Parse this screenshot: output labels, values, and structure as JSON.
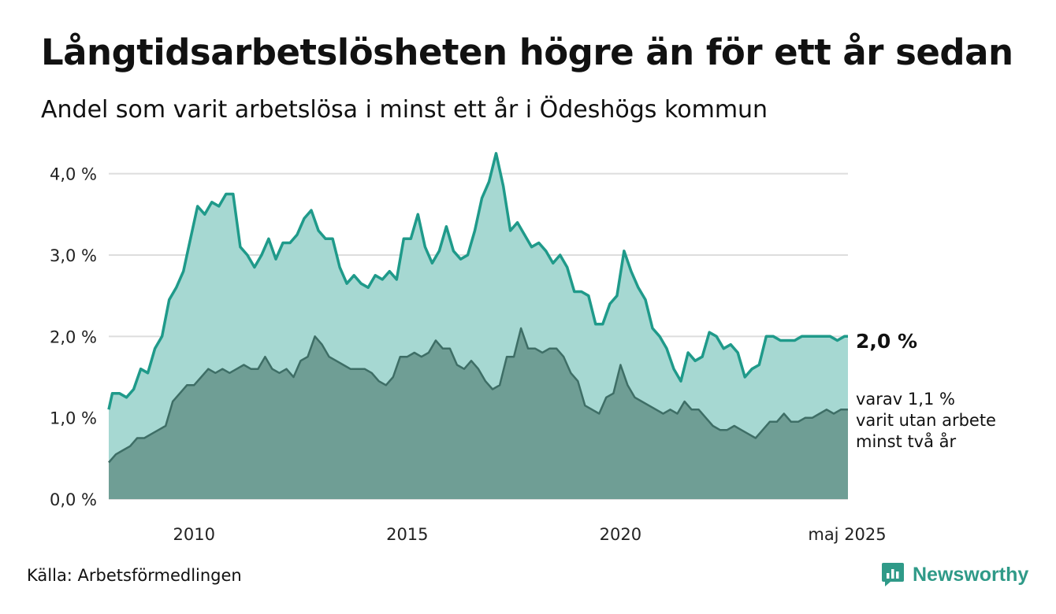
{
  "title": "Långtidsarbetslösheten högre än för ett år sedan",
  "subtitle": "Andel som varit arbetslösa i minst ett år i Ödeshögs kommun",
  "source": "Källa: Arbetsförmedlingen",
  "brand": {
    "name": "Newsworthy",
    "icon": "newsworthy-logo-icon",
    "color": "#2f9a88"
  },
  "colors": {
    "total_line": "#1f9a8a",
    "total_fill": "#a6d8d2",
    "longterm_line": "#3e6e66",
    "longterm_fill": "#6f9e95",
    "grid": "#dddddd"
  },
  "chart_data": {
    "type": "area",
    "x_unit": "month",
    "x_start": "2008-01",
    "x_end": "2025-05",
    "xlim": [
      "2008-01",
      "2025-05"
    ],
    "x_ticks": [
      {
        "date": "2010-01",
        "label": "2010"
      },
      {
        "date": "2015-01",
        "label": "2015"
      },
      {
        "date": "2020-01",
        "label": "2020"
      },
      {
        "date": "2025-05",
        "label": "maj 2025"
      }
    ],
    "ylim": [
      0,
      4.2
    ],
    "y_ticks": [
      {
        "value": 0,
        "label": "0,0 %"
      },
      {
        "value": 1,
        "label": "1,0 %"
      },
      {
        "value": 2,
        "label": "2,0 %"
      },
      {
        "value": 3,
        "label": "3,0 %"
      },
      {
        "value": 4,
        "label": "4,0 %"
      }
    ],
    "grid": true,
    "series": [
      {
        "key": "total",
        "end_label": "2,0 %",
        "points": [
          [
            "2008-01",
            1.1
          ],
          [
            "2008-02",
            1.3
          ],
          [
            "2008-04",
            1.3
          ],
          [
            "2008-06",
            1.25
          ],
          [
            "2008-08",
            1.35
          ],
          [
            "2008-10",
            1.6
          ],
          [
            "2008-12",
            1.55
          ],
          [
            "2009-02",
            1.85
          ],
          [
            "2009-04",
            2.0
          ],
          [
            "2009-06",
            2.45
          ],
          [
            "2009-08",
            2.6
          ],
          [
            "2009-10",
            2.8
          ],
          [
            "2009-12",
            3.2
          ],
          [
            "2010-02",
            3.6
          ],
          [
            "2010-04",
            3.5
          ],
          [
            "2010-06",
            3.65
          ],
          [
            "2010-08",
            3.6
          ],
          [
            "2010-10",
            3.75
          ],
          [
            "2010-12",
            3.75
          ],
          [
            "2011-02",
            3.1
          ],
          [
            "2011-04",
            3.0
          ],
          [
            "2011-06",
            2.85
          ],
          [
            "2011-08",
            3.0
          ],
          [
            "2011-10",
            3.2
          ],
          [
            "2011-12",
            2.95
          ],
          [
            "2012-02",
            3.15
          ],
          [
            "2012-04",
            3.15
          ],
          [
            "2012-06",
            3.25
          ],
          [
            "2012-08",
            3.45
          ],
          [
            "2012-10",
            3.55
          ],
          [
            "2012-12",
            3.3
          ],
          [
            "2013-02",
            3.2
          ],
          [
            "2013-04",
            3.2
          ],
          [
            "2013-06",
            2.85
          ],
          [
            "2013-08",
            2.65
          ],
          [
            "2013-10",
            2.75
          ],
          [
            "2013-12",
            2.65
          ],
          [
            "2014-02",
            2.6
          ],
          [
            "2014-04",
            2.75
          ],
          [
            "2014-06",
            2.7
          ],
          [
            "2014-08",
            2.8
          ],
          [
            "2014-10",
            2.7
          ],
          [
            "2014-12",
            3.2
          ],
          [
            "2015-02",
            3.2
          ],
          [
            "2015-04",
            3.5
          ],
          [
            "2015-06",
            3.1
          ],
          [
            "2015-08",
            2.9
          ],
          [
            "2015-10",
            3.05
          ],
          [
            "2015-12",
            3.35
          ],
          [
            "2016-02",
            3.05
          ],
          [
            "2016-04",
            2.95
          ],
          [
            "2016-06",
            3.0
          ],
          [
            "2016-08",
            3.3
          ],
          [
            "2016-10",
            3.7
          ],
          [
            "2016-12",
            3.9
          ],
          [
            "2017-02",
            4.25
          ],
          [
            "2017-04",
            3.85
          ],
          [
            "2017-06",
            3.3
          ],
          [
            "2017-08",
            3.4
          ],
          [
            "2017-10",
            3.25
          ],
          [
            "2017-12",
            3.1
          ],
          [
            "2018-02",
            3.15
          ],
          [
            "2018-04",
            3.05
          ],
          [
            "2018-06",
            2.9
          ],
          [
            "2018-08",
            3.0
          ],
          [
            "2018-10",
            2.85
          ],
          [
            "2018-12",
            2.55
          ],
          [
            "2019-02",
            2.55
          ],
          [
            "2019-04",
            2.5
          ],
          [
            "2019-06",
            2.15
          ],
          [
            "2019-08",
            2.15
          ],
          [
            "2019-10",
            2.4
          ],
          [
            "2019-12",
            2.5
          ],
          [
            "2020-02",
            3.05
          ],
          [
            "2020-04",
            2.8
          ],
          [
            "2020-06",
            2.6
          ],
          [
            "2020-08",
            2.45
          ],
          [
            "2020-10",
            2.1
          ],
          [
            "2020-12",
            2.0
          ],
          [
            "2021-02",
            1.85
          ],
          [
            "2021-04",
            1.6
          ],
          [
            "2021-06",
            1.45
          ],
          [
            "2021-08",
            1.8
          ],
          [
            "2021-10",
            1.7
          ],
          [
            "2021-12",
            1.75
          ],
          [
            "2022-02",
            2.05
          ],
          [
            "2022-04",
            2.0
          ],
          [
            "2022-06",
            1.85
          ],
          [
            "2022-08",
            1.9
          ],
          [
            "2022-10",
            1.8
          ],
          [
            "2022-12",
            1.5
          ],
          [
            "2023-02",
            1.6
          ],
          [
            "2023-04",
            1.65
          ],
          [
            "2023-06",
            2.0
          ],
          [
            "2023-08",
            2.0
          ],
          [
            "2023-10",
            1.95
          ],
          [
            "2023-12",
            1.95
          ],
          [
            "2024-02",
            1.95
          ],
          [
            "2024-04",
            2.0
          ],
          [
            "2024-06",
            2.0
          ],
          [
            "2024-08",
            2.0
          ],
          [
            "2024-10",
            2.0
          ],
          [
            "2024-12",
            2.0
          ],
          [
            "2025-02",
            1.95
          ],
          [
            "2025-04",
            2.0
          ],
          [
            "2025-05",
            2.0
          ]
        ]
      },
      {
        "key": "longterm",
        "end_label": "varav 1,1 %\nvarit utan arbete\nminst två år",
        "points": [
          [
            "2008-01",
            0.45
          ],
          [
            "2008-03",
            0.55
          ],
          [
            "2008-05",
            0.6
          ],
          [
            "2008-07",
            0.65
          ],
          [
            "2008-09",
            0.75
          ],
          [
            "2008-11",
            0.75
          ],
          [
            "2009-01",
            0.8
          ],
          [
            "2009-03",
            0.85
          ],
          [
            "2009-05",
            0.9
          ],
          [
            "2009-07",
            1.2
          ],
          [
            "2009-09",
            1.3
          ],
          [
            "2009-11",
            1.4
          ],
          [
            "2010-01",
            1.4
          ],
          [
            "2010-03",
            1.5
          ],
          [
            "2010-05",
            1.6
          ],
          [
            "2010-07",
            1.55
          ],
          [
            "2010-09",
            1.6
          ],
          [
            "2010-11",
            1.55
          ],
          [
            "2011-01",
            1.6
          ],
          [
            "2011-03",
            1.65
          ],
          [
            "2011-05",
            1.6
          ],
          [
            "2011-07",
            1.6
          ],
          [
            "2011-09",
            1.75
          ],
          [
            "2011-11",
            1.6
          ],
          [
            "2012-01",
            1.55
          ],
          [
            "2012-03",
            1.6
          ],
          [
            "2012-05",
            1.5
          ],
          [
            "2012-07",
            1.7
          ],
          [
            "2012-09",
            1.75
          ],
          [
            "2012-11",
            2.0
          ],
          [
            "2013-01",
            1.9
          ],
          [
            "2013-03",
            1.75
          ],
          [
            "2013-05",
            1.7
          ],
          [
            "2013-07",
            1.65
          ],
          [
            "2013-09",
            1.6
          ],
          [
            "2013-11",
            1.6
          ],
          [
            "2014-01",
            1.6
          ],
          [
            "2014-03",
            1.55
          ],
          [
            "2014-05",
            1.45
          ],
          [
            "2014-07",
            1.4
          ],
          [
            "2014-09",
            1.5
          ],
          [
            "2014-11",
            1.75
          ],
          [
            "2015-01",
            1.75
          ],
          [
            "2015-03",
            1.8
          ],
          [
            "2015-05",
            1.75
          ],
          [
            "2015-07",
            1.8
          ],
          [
            "2015-09",
            1.95
          ],
          [
            "2015-11",
            1.85
          ],
          [
            "2016-01",
            1.85
          ],
          [
            "2016-03",
            1.65
          ],
          [
            "2016-05",
            1.6
          ],
          [
            "2016-07",
            1.7
          ],
          [
            "2016-09",
            1.6
          ],
          [
            "2016-11",
            1.45
          ],
          [
            "2017-01",
            1.35
          ],
          [
            "2017-03",
            1.4
          ],
          [
            "2017-05",
            1.75
          ],
          [
            "2017-07",
            1.75
          ],
          [
            "2017-09",
            2.1
          ],
          [
            "2017-11",
            1.85
          ],
          [
            "2018-01",
            1.85
          ],
          [
            "2018-03",
            1.8
          ],
          [
            "2018-05",
            1.85
          ],
          [
            "2018-07",
            1.85
          ],
          [
            "2018-09",
            1.75
          ],
          [
            "2018-11",
            1.55
          ],
          [
            "2019-01",
            1.45
          ],
          [
            "2019-03",
            1.15
          ],
          [
            "2019-05",
            1.1
          ],
          [
            "2019-07",
            1.05
          ],
          [
            "2019-09",
            1.25
          ],
          [
            "2019-11",
            1.3
          ],
          [
            "2020-01",
            1.65
          ],
          [
            "2020-03",
            1.4
          ],
          [
            "2020-05",
            1.25
          ],
          [
            "2020-07",
            1.2
          ],
          [
            "2020-09",
            1.15
          ],
          [
            "2020-11",
            1.1
          ],
          [
            "2021-01",
            1.05
          ],
          [
            "2021-03",
            1.1
          ],
          [
            "2021-05",
            1.05
          ],
          [
            "2021-07",
            1.2
          ],
          [
            "2021-09",
            1.1
          ],
          [
            "2021-11",
            1.1
          ],
          [
            "2022-01",
            1.0
          ],
          [
            "2022-03",
            0.9
          ],
          [
            "2022-05",
            0.85
          ],
          [
            "2022-07",
            0.85
          ],
          [
            "2022-09",
            0.9
          ],
          [
            "2022-11",
            0.85
          ],
          [
            "2023-01",
            0.8
          ],
          [
            "2023-03",
            0.75
          ],
          [
            "2023-05",
            0.85
          ],
          [
            "2023-07",
            0.95
          ],
          [
            "2023-09",
            0.95
          ],
          [
            "2023-11",
            1.05
          ],
          [
            "2024-01",
            0.95
          ],
          [
            "2024-03",
            0.95
          ],
          [
            "2024-05",
            1.0
          ],
          [
            "2024-07",
            1.0
          ],
          [
            "2024-09",
            1.05
          ],
          [
            "2024-11",
            1.1
          ],
          [
            "2025-01",
            1.05
          ],
          [
            "2025-03",
            1.1
          ],
          [
            "2025-05",
            1.1
          ]
        ]
      }
    ]
  }
}
